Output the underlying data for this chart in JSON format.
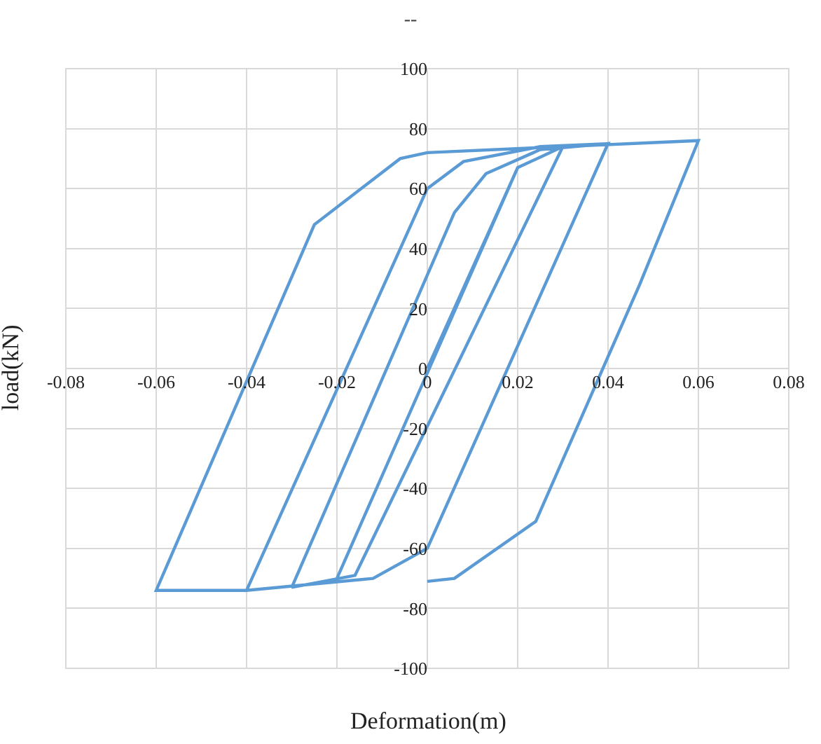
{
  "chart_data": {
    "type": "line",
    "title": "--",
    "xlabel": "Deformation(m)",
    "ylabel": "load(kN)",
    "x": [
      0,
      0.02,
      -0.02,
      0.02,
      0.03,
      -0.016,
      -0.03,
      0.006,
      0.013,
      0.025,
      0.04,
      0,
      -0.012,
      -0.04,
      0,
      0.008,
      0.025,
      0.04,
      0,
      -0.012,
      -0.04,
      -0.06,
      -0.025,
      -0.006,
      0,
      0.06,
      0.047,
      0.024,
      0.006,
      0
    ],
    "series": [
      {
        "color": "#5b9bd5",
        "values": [
          0,
          67,
          -70,
          67,
          74,
          -69,
          -73,
          52,
          65,
          73,
          75,
          -60,
          -70,
          -74,
          60,
          69,
          74,
          75,
          -60,
          -70,
          -74,
          -74,
          48,
          70,
          72,
          76,
          28,
          -51,
          -70,
          -71
        ]
      }
    ],
    "xlim": [
      -0.08,
      0.08
    ],
    "xticks": [
      -0.08,
      -0.06,
      -0.04,
      -0.02,
      0,
      0.02,
      0.04,
      0.06,
      0.08
    ],
    "ylim": [
      -100,
      100
    ],
    "yticks": [
      -100,
      -80,
      -60,
      -40,
      -20,
      0,
      20,
      40,
      60,
      80,
      100
    ],
    "grid": true,
    "marker": "none",
    "line_style": "solid"
  }
}
